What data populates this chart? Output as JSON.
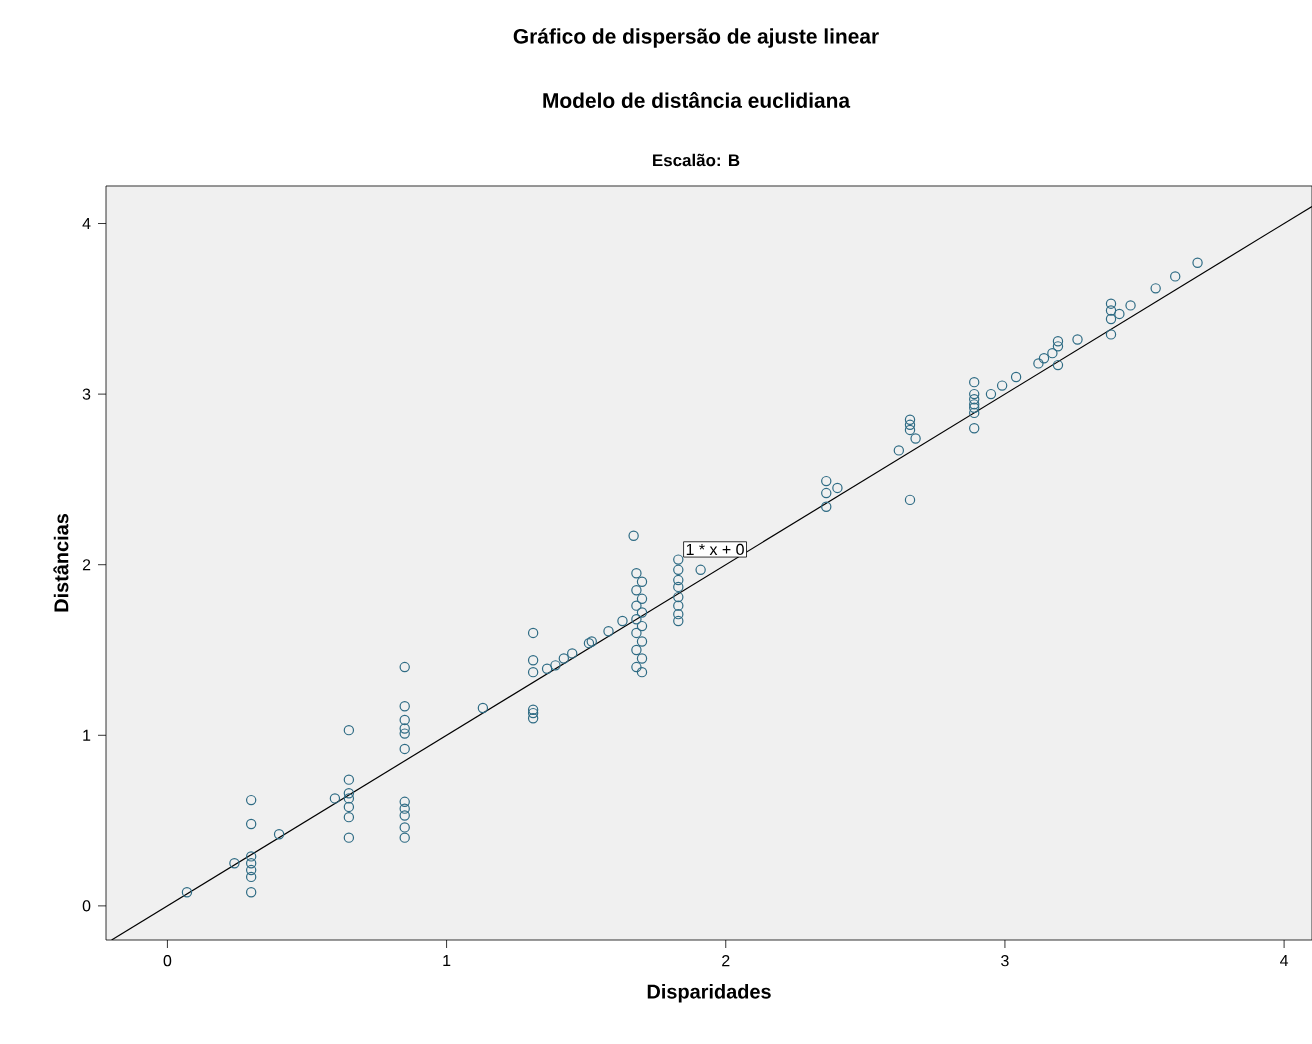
{
  "chart_data": {
    "type": "scatter",
    "title": "Gráfico de dispersão de ajuste linear",
    "subtitle": "Modelo de distância euclidiana",
    "xlabel": "Disparidades",
    "ylabel": "Distâncias",
    "annotations": [
      "Escalão: B",
      "1 * x + 0"
    ],
    "xlim": [
      -0.22,
      4.1
    ],
    "ylim": [
      -0.2,
      4.22
    ],
    "xticks": [
      0,
      1,
      2,
      3,
      4
    ],
    "yticks": [
      0,
      1,
      2,
      3,
      4
    ],
    "grid": false,
    "series": [
      {
        "marker": "circle",
        "color": "#2e6b84",
        "x": [
          0.07,
          0.24,
          0.3,
          0.3,
          0.3,
          0.3,
          0.3,
          0.3,
          0.3,
          0.4,
          0.6,
          0.65,
          0.65,
          0.65,
          0.65,
          0.65,
          0.65,
          0.65,
          0.85,
          0.85,
          0.85,
          0.85,
          0.85,
          0.85,
          0.85,
          0.85,
          0.85,
          0.85,
          0.85,
          1.13,
          1.31,
          1.31,
          1.31,
          1.31,
          1.31,
          1.31,
          1.36,
          1.39,
          1.42,
          1.45,
          1.51,
          1.52,
          1.58,
          1.63,
          1.67,
          1.68,
          1.7,
          1.68,
          1.7,
          1.68,
          1.7,
          1.68,
          1.7,
          1.68,
          1.7,
          1.68,
          1.7,
          1.68,
          1.7,
          1.83,
          1.83,
          1.83,
          1.83,
          1.83,
          1.83,
          1.83,
          1.83,
          1.91,
          2.36,
          2.4,
          2.36,
          2.36,
          2.62,
          2.66,
          2.66,
          2.66,
          2.66,
          2.68,
          2.89,
          2.89,
          2.89,
          2.89,
          2.89,
          2.89,
          2.89,
          2.95,
          2.99,
          3.04,
          3.12,
          3.14,
          3.17,
          3.19,
          3.19,
          3.19,
          3.26,
          3.38,
          3.38,
          3.38,
          3.38,
          3.41,
          3.45,
          3.54,
          3.61,
          3.69
        ],
        "values": [
          0.08,
          0.25,
          0.62,
          0.48,
          0.29,
          0.25,
          0.21,
          0.17,
          0.08,
          0.42,
          0.63,
          1.03,
          0.74,
          0.66,
          0.63,
          0.58,
          0.52,
          0.4,
          1.4,
          1.17,
          1.09,
          1.04,
          1.01,
          0.92,
          0.61,
          0.57,
          0.53,
          0.46,
          0.4,
          1.16,
          1.6,
          1.44,
          1.37,
          1.15,
          1.13,
          1.1,
          1.39,
          1.41,
          1.45,
          1.48,
          1.54,
          1.55,
          1.61,
          1.67,
          2.17,
          1.95,
          1.9,
          1.85,
          1.8,
          1.76,
          1.72,
          1.68,
          1.64,
          1.6,
          1.55,
          1.5,
          1.45,
          1.4,
          1.37,
          2.03,
          1.97,
          1.91,
          1.87,
          1.81,
          1.76,
          1.71,
          1.67,
          1.97,
          2.49,
          2.45,
          2.42,
          2.34,
          2.67,
          2.38,
          2.85,
          2.82,
          2.79,
          2.74,
          3.07,
          3.0,
          2.97,
          2.94,
          2.92,
          2.89,
          2.8,
          3.0,
          3.05,
          3.1,
          3.18,
          3.21,
          3.24,
          3.28,
          3.31,
          3.17,
          3.32,
          3.53,
          3.49,
          3.44,
          3.35,
          3.47,
          3.52,
          3.62,
          3.69,
          3.77
        ]
      },
      {
        "type": "line",
        "marker": "none",
        "color": "#000000",
        "x": [
          -0.2,
          4.1
        ],
        "values": [
          -0.2,
          4.1
        ]
      }
    ]
  }
}
